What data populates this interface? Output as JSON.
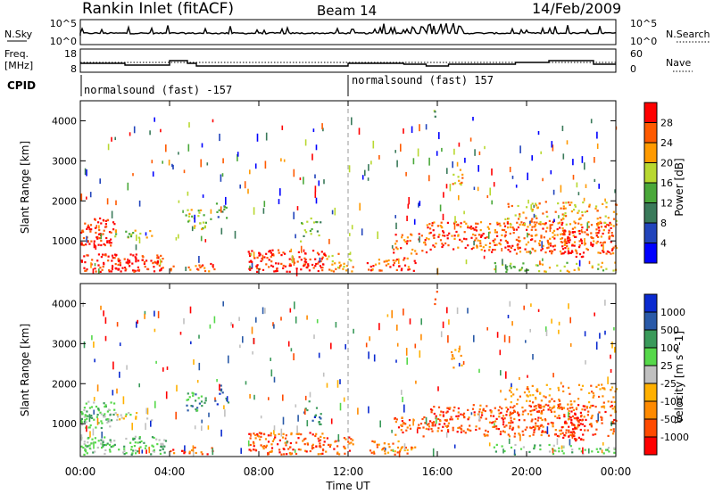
{
  "header": {
    "station": "Rankin Inlet (fitACF)",
    "beam": "Beam 14",
    "date": "14/Feb/2009"
  },
  "strip_panels": {
    "nsky_label": "N.Sky",
    "nsky_ticks": [
      "10^5",
      "10^0"
    ],
    "nsearch_label": "N.Search",
    "nsearch_ticks": [
      "10^5",
      "10^0"
    ],
    "freq_label": "Freq.",
    "freq_unit": "[MHz]",
    "freq_ticks": [
      "18",
      "8"
    ],
    "nave_label": "Nave",
    "nave_ticks": [
      "60",
      "0"
    ],
    "cpid_label": "CPID",
    "cpid_segments": [
      {
        "label": "normalsound (fast) -157",
        "start_h": 0
      },
      {
        "label": "normalsound (fast) 157",
        "start_h": 12
      }
    ]
  },
  "chart_data": [
    {
      "type": "heatmap",
      "variable": "power",
      "ylabel": "Slant Range [km]",
      "xlabel": "",
      "xlim": [
        0,
        24
      ],
      "ylim": [
        180,
        4500
      ],
      "x_ticks": [
        "00:00",
        "04:00",
        "08:00",
        "12:00",
        "16:00",
        "20:00",
        "00:00"
      ],
      "y_ticks": [
        1000,
        2000,
        3000,
        4000
      ],
      "colorbar": {
        "label": "Power [dB]",
        "ticks": [
          "28",
          "24",
          "20",
          "16",
          "12",
          "8",
          "4"
        ],
        "colors": [
          "#0000ff",
          "#2244bb",
          "#3a7a5a",
          "#4aa83a",
          "#b8d830",
          "#ff9a00",
          "#ff5a00",
          "#ff0000"
        ]
      }
    },
    {
      "type": "heatmap",
      "variable": "velocity",
      "ylabel": "Slant Range [km]",
      "xlabel": "Time UT",
      "xlim": [
        0,
        24
      ],
      "ylim": [
        180,
        4500
      ],
      "x_ticks": [
        "00:00",
        "04:00",
        "08:00",
        "12:00",
        "16:00",
        "20:00",
        "00:00"
      ],
      "y_ticks": [
        1000,
        2000,
        3000,
        4000
      ],
      "colorbar": {
        "label": "Velocity [m s^-1]",
        "ticks": [
          "1000",
          "500",
          "100",
          "25",
          "-25",
          "-100",
          "-500",
          "-1000"
        ],
        "colors": [
          "#ff0000",
          "#ff4a00",
          "#ff8a00",
          "#ffb000",
          "#c0c0c0",
          "#56d84a",
          "#3a9a5a",
          "#2a5aa8",
          "#0a2ad0"
        ]
      }
    }
  ]
}
